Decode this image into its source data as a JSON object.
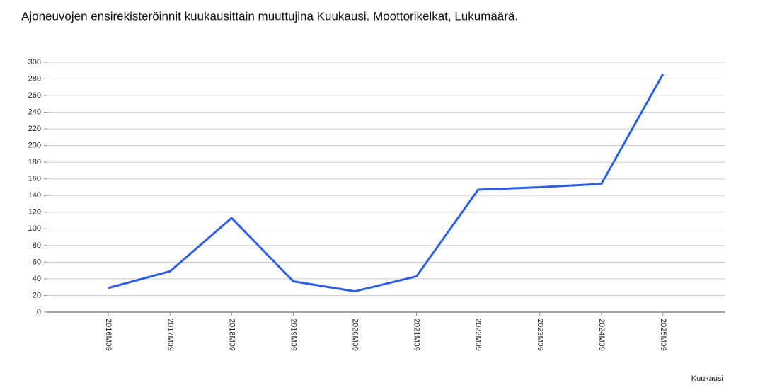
{
  "chart_data": {
    "type": "line",
    "title": "Ajoneuvojen ensirekisteröinnit kuukausittain muuttujina Kuukausi. Moottorikelkat, Lukumäärä.",
    "x_label": "Kuukausi",
    "categories": [
      "2016M09",
      "2017M09",
      "2018M09",
      "2019M09",
      "2020M09",
      "2021M09",
      "2022M09",
      "2023M09",
      "2024M09",
      "2025M09"
    ],
    "values": [
      29,
      49,
      113,
      37,
      25,
      43,
      147,
      150,
      154,
      286
    ],
    "color": "#2b5fe6",
    "ylim": [
      0,
      300
    ],
    "yticks": [
      0,
      20,
      40,
      60,
      80,
      100,
      120,
      140,
      160,
      180,
      200,
      220,
      240,
      260,
      280,
      300
    ],
    "grid": true
  }
}
